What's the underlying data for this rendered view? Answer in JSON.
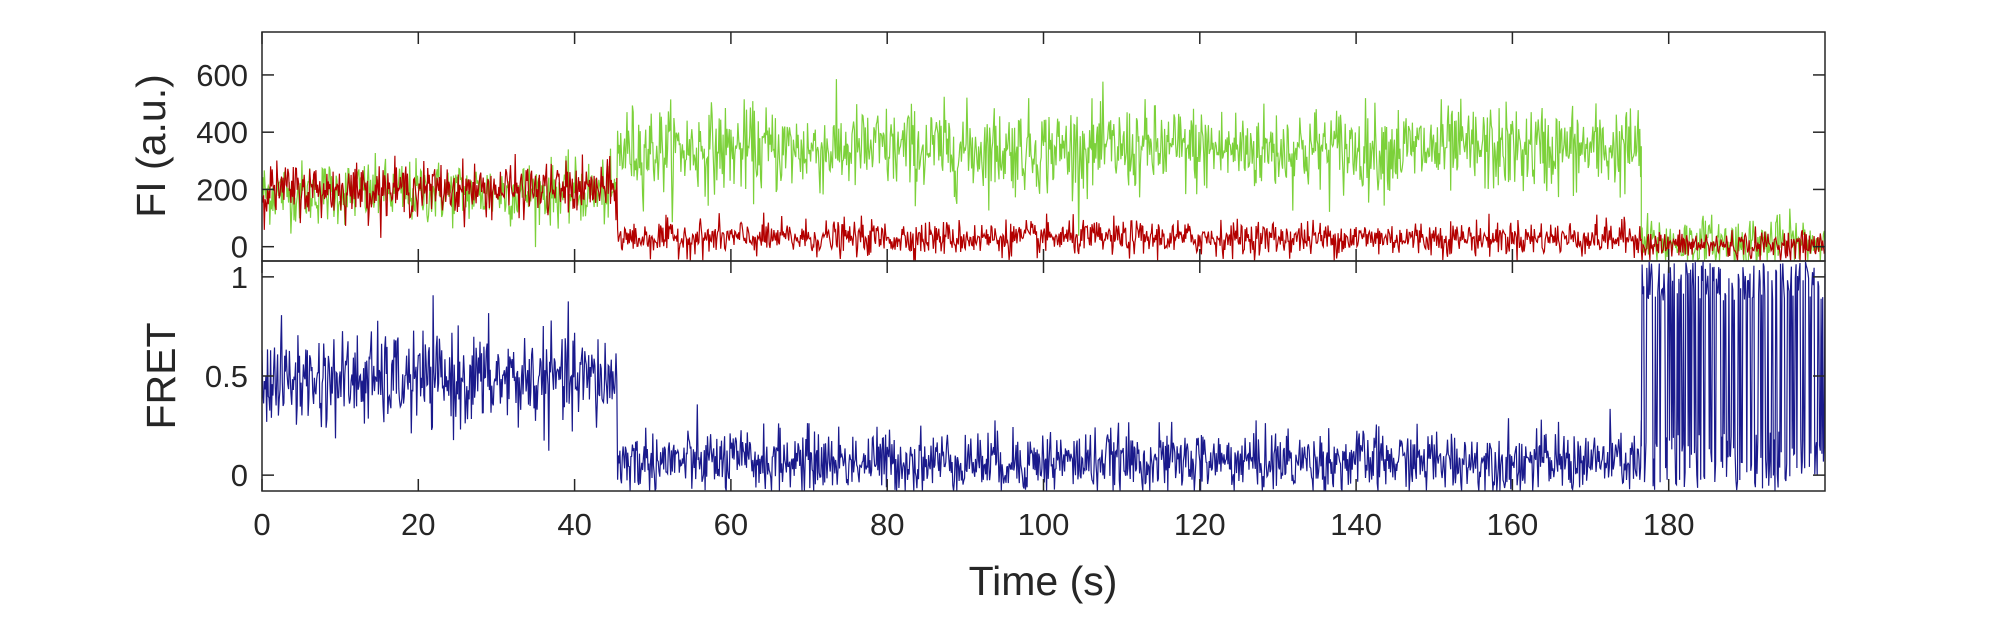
{
  "chart_data": [
    {
      "type": "line",
      "panel": "top",
      "title": "",
      "xlabel": "",
      "ylabel": "FI (a.u.)",
      "xlim": [
        0,
        200
      ],
      "ylim": [
        -50,
        750
      ],
      "yticks": [
        0,
        200,
        400,
        600
      ],
      "ytick_labels": [
        "0",
        "200",
        "400",
        "600"
      ],
      "xtick_labels_shown": false,
      "grid": false,
      "colors": {
        "donor": "#7cd13a",
        "acceptor": "#b30000"
      },
      "series": [
        {
          "color_key": "donor",
          "segments": [
            {
              "x_start": 0,
              "x_end": 45.5,
              "mean": 190,
              "noise": 55
            },
            {
              "x_start": 45.5,
              "x_end": 176.5,
              "mean": 340,
              "noise": 75
            },
            {
              "x_start": 176.5,
              "x_end": 200,
              "mean": 15,
              "noise": 45
            }
          ]
        },
        {
          "color_key": "acceptor",
          "segments": [
            {
              "x_start": 0,
              "x_end": 45.5,
              "mean": 200,
              "noise": 45
            },
            {
              "x_start": 45.5,
              "x_end": 176.5,
              "mean": 30,
              "noise": 30
            },
            {
              "x_start": 176.5,
              "x_end": 200,
              "mean": 5,
              "noise": 25
            }
          ]
        }
      ]
    },
    {
      "type": "line",
      "panel": "bottom",
      "title": "",
      "xlabel": "Time (s)",
      "ylabel": "FRET",
      "xlim": [
        0,
        200
      ],
      "ylim": [
        -0.08,
        1.08
      ],
      "yticks": [
        0,
        0.5,
        1
      ],
      "ytick_labels": [
        "0",
        "0.5",
        "1"
      ],
      "xticks": [
        0,
        20,
        40,
        60,
        80,
        100,
        120,
        140,
        160,
        180
      ],
      "xtick_labels": [
        "0",
        "20",
        "40",
        "60",
        "80",
        "100",
        "120",
        "140",
        "160",
        "180"
      ],
      "grid": false,
      "colors": {
        "fret": "#1a1a8c"
      },
      "series": [
        {
          "color_key": "fret",
          "segments": [
            {
              "x_start": 0,
              "x_end": 45.5,
              "mean": 0.48,
              "noise": 0.12
            },
            {
              "x_start": 45.5,
              "x_end": 176.5,
              "mean": 0.07,
              "noise": 0.08
            },
            {
              "x_start": 176.5,
              "x_end": 200,
              "mean": 0.5,
              "noise": 0.7,
              "clipped": true
            }
          ]
        }
      ]
    }
  ]
}
